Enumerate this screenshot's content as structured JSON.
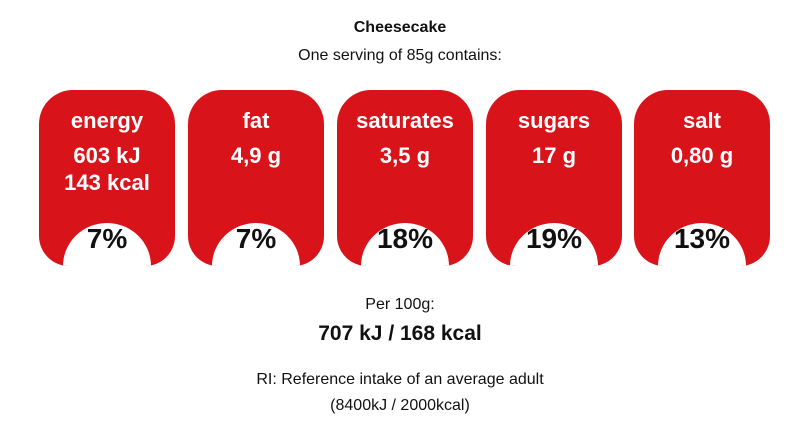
{
  "product": {
    "name": "Cheesecake",
    "serving_text": "One serving of 85g contains:"
  },
  "colors": {
    "badge_red": "#d9131a",
    "badge_white": "#ffffff"
  },
  "nutrients": [
    {
      "name": "energy",
      "value_1": "603 kJ",
      "value_2": "143 kcal",
      "percent": "7%"
    },
    {
      "name": "fat",
      "value_1": "4,9 g",
      "value_2": "",
      "percent": "7%"
    },
    {
      "name": "saturates",
      "value_1": "3,5 g",
      "value_2": "",
      "percent": "18%"
    },
    {
      "name": "sugars",
      "value_1": "17 g",
      "value_2": "",
      "percent": "19%"
    },
    {
      "name": "salt",
      "value_1": "0,80 g",
      "value_2": "",
      "percent": "13%"
    }
  ],
  "per_100g": {
    "label": "Per 100g:",
    "value": "707 kJ / 168 kcal"
  },
  "reference": {
    "line_1": "RI: Reference intake of an average adult",
    "line_2": "(8400kJ / 2000kcal)"
  }
}
